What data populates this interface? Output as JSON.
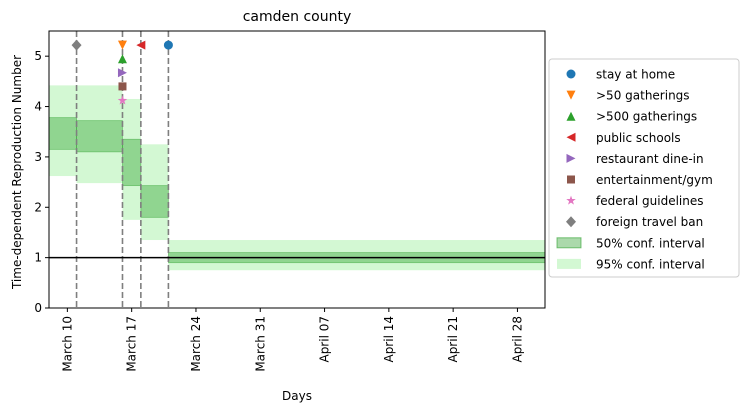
{
  "chart_data": {
    "type": "line",
    "title": "camden county",
    "xlabel": "Days",
    "ylabel": "Time-dependent Reproduction Number",
    "xlim": [
      "2020-03-08",
      "2020-05-01"
    ],
    "ylim": [
      0,
      5.5
    ],
    "y_ticks": [
      0,
      1,
      2,
      3,
      4,
      5
    ],
    "x_ticks": [
      {
        "date": "2020-03-10",
        "label": "March 10"
      },
      {
        "date": "2020-03-17",
        "label": "March 17"
      },
      {
        "date": "2020-03-24",
        "label": "March 24"
      },
      {
        "date": "2020-03-31",
        "label": "March 31"
      },
      {
        "date": "2020-04-07",
        "label": "April 07"
      },
      {
        "date": "2020-04-14",
        "label": "April 14"
      },
      {
        "date": "2020-04-21",
        "label": "April 21"
      },
      {
        "date": "2020-04-28",
        "label": "April 28"
      }
    ],
    "reference_line": {
      "y": 1,
      "color": "#000000"
    },
    "intervals_95": [
      {
        "start": "2020-03-08",
        "end": "2020-03-11",
        "low": 2.62,
        "high": 4.42
      },
      {
        "start": "2020-03-11",
        "end": "2020-03-16",
        "low": 2.48,
        "high": 4.42
      },
      {
        "start": "2020-03-16",
        "end": "2020-03-18",
        "low": 1.75,
        "high": 4.15
      },
      {
        "start": "2020-03-18",
        "end": "2020-03-21",
        "low": 1.35,
        "high": 3.25
      },
      {
        "start": "2020-03-21",
        "end": "2020-05-01",
        "low": 0.75,
        "high": 1.35
      }
    ],
    "intervals_50": [
      {
        "start": "2020-03-08",
        "end": "2020-03-11",
        "low": 3.15,
        "high": 3.78
      },
      {
        "start": "2020-03-11",
        "end": "2020-03-16",
        "low": 3.1,
        "high": 3.72
      },
      {
        "start": "2020-03-16",
        "end": "2020-03-18",
        "low": 2.43,
        "high": 3.35
      },
      {
        "start": "2020-03-18",
        "end": "2020-03-21",
        "low": 1.8,
        "high": 2.43
      },
      {
        "start": "2020-03-21",
        "end": "2020-05-01",
        "low": 0.9,
        "high": 1.1
      }
    ],
    "interventions": [
      {
        "name": "stay at home",
        "date": "2020-03-21",
        "y": 5.22,
        "marker": "circle",
        "color": "#1f77b4"
      },
      {
        "name": ">50 gatherings",
        "date": "2020-03-16",
        "y": 5.22,
        "marker": "triangle-down",
        "color": "#ff7f0e"
      },
      {
        "name": ">500 gatherings",
        "date": "2020-03-16",
        "y": 4.95,
        "marker": "triangle-up",
        "color": "#2ca02c"
      },
      {
        "name": "public schools",
        "date": "2020-03-18",
        "y": 5.22,
        "marker": "triangle-left",
        "color": "#d62728"
      },
      {
        "name": "restaurant dine-in",
        "date": "2020-03-16",
        "y": 4.67,
        "marker": "triangle-right",
        "color": "#9467bd"
      },
      {
        "name": "entertainment/gym",
        "date": "2020-03-16",
        "y": 4.4,
        "marker": "square",
        "color": "#8c564b"
      },
      {
        "name": "federal guidelines",
        "date": "2020-03-16",
        "y": 4.12,
        "marker": "star",
        "color": "#e377c2"
      },
      {
        "name": "foreign travel ban",
        "date": "2020-03-11",
        "y": 5.22,
        "marker": "diamond",
        "color": "#7f7f7f"
      }
    ],
    "vlines": [
      "2020-03-11",
      "2020-03-16",
      "2020-03-18",
      "2020-03-21"
    ],
    "band_colors": {
      "ci50": "#2ca02c",
      "ci95": "#90ee90"
    },
    "legend": {
      "placement": "outside-right",
      "ci50_label": "50% conf. interval",
      "ci95_label": "95% conf. interval"
    },
    "grid": false
  }
}
